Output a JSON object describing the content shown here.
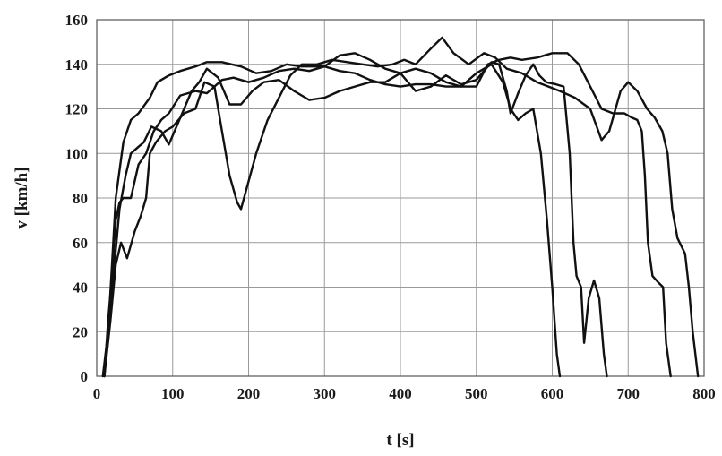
{
  "chart_data": {
    "type": "line",
    "xlabel": "t [s]",
    "ylabel": "v [km/h]",
    "xlim": [
      0,
      800
    ],
    "ylim": [
      0,
      160
    ],
    "xticks": [
      0,
      100,
      200,
      300,
      400,
      500,
      600,
      700,
      800
    ],
    "yticks": [
      0,
      20,
      40,
      60,
      80,
      100,
      120,
      140,
      160
    ],
    "grid": true,
    "legend": "none",
    "series": [
      {
        "points": [
          [
            8,
            0
          ],
          [
            15,
            20
          ],
          [
            20,
            50
          ],
          [
            25,
            80
          ],
          [
            35,
            105
          ],
          [
            45,
            115
          ],
          [
            55,
            118
          ],
          [
            70,
            125
          ],
          [
            80,
            132
          ],
          [
            95,
            135
          ],
          [
            110,
            137
          ],
          [
            130,
            139
          ],
          [
            145,
            141
          ],
          [
            165,
            141
          ],
          [
            190,
            139
          ],
          [
            210,
            136
          ],
          [
            230,
            137
          ],
          [
            250,
            140
          ],
          [
            270,
            139
          ],
          [
            300,
            139
          ],
          [
            320,
            137
          ],
          [
            340,
            136
          ],
          [
            360,
            133
          ],
          [
            380,
            131
          ],
          [
            400,
            130
          ],
          [
            420,
            131
          ],
          [
            440,
            131
          ],
          [
            460,
            130
          ],
          [
            480,
            130
          ],
          [
            500,
            136
          ],
          [
            520,
            140
          ],
          [
            535,
            132
          ],
          [
            545,
            120
          ],
          [
            555,
            115
          ],
          [
            565,
            118
          ],
          [
            575,
            120
          ],
          [
            585,
            100
          ],
          [
            593,
            70
          ],
          [
            600,
            40
          ],
          [
            606,
            10
          ],
          [
            610,
            0
          ]
        ]
      },
      {
        "points": [
          [
            10,
            0
          ],
          [
            15,
            25
          ],
          [
            20,
            45
          ],
          [
            25,
            70
          ],
          [
            30,
            78
          ],
          [
            35,
            80
          ],
          [
            45,
            80
          ],
          [
            55,
            95
          ],
          [
            65,
            100
          ],
          [
            75,
            110
          ],
          [
            85,
            115
          ],
          [
            95,
            118
          ],
          [
            110,
            126
          ],
          [
            130,
            128
          ],
          [
            145,
            127
          ],
          [
            165,
            133
          ],
          [
            180,
            134
          ],
          [
            200,
            132
          ],
          [
            220,
            134
          ],
          [
            240,
            137
          ],
          [
            260,
            138
          ],
          [
            280,
            137
          ],
          [
            300,
            139
          ],
          [
            320,
            144
          ],
          [
            340,
            145
          ],
          [
            360,
            142
          ],
          [
            380,
            138
          ],
          [
            400,
            136
          ],
          [
            420,
            128
          ],
          [
            440,
            130
          ],
          [
            460,
            135
          ],
          [
            480,
            131
          ],
          [
            500,
            133
          ],
          [
            520,
            141
          ],
          [
            530,
            140
          ],
          [
            540,
            128
          ],
          [
            545,
            118
          ],
          [
            555,
            127
          ],
          [
            565,
            135
          ],
          [
            575,
            140
          ],
          [
            583,
            135
          ],
          [
            592,
            132
          ],
          [
            605,
            131
          ],
          [
            615,
            130
          ],
          [
            623,
            100
          ],
          [
            628,
            60
          ],
          [
            632,
            45
          ],
          [
            638,
            40
          ],
          [
            642,
            15
          ],
          [
            648,
            35
          ],
          [
            655,
            43
          ],
          [
            662,
            35
          ],
          [
            668,
            10
          ],
          [
            672,
            0
          ]
        ]
      },
      {
        "points": [
          [
            10,
            0
          ],
          [
            18,
            25
          ],
          [
            25,
            50
          ],
          [
            32,
            60
          ],
          [
            40,
            53
          ],
          [
            50,
            65
          ],
          [
            58,
            72
          ],
          [
            65,
            80
          ],
          [
            70,
            100
          ],
          [
            78,
            105
          ],
          [
            90,
            110
          ],
          [
            100,
            112
          ],
          [
            115,
            118
          ],
          [
            130,
            120
          ],
          [
            142,
            132
          ],
          [
            155,
            130
          ],
          [
            165,
            110
          ],
          [
            175,
            90
          ],
          [
            185,
            78
          ],
          [
            190,
            75
          ],
          [
            198,
            85
          ],
          [
            210,
            100
          ],
          [
            225,
            115
          ],
          [
            240,
            125
          ],
          [
            255,
            135
          ],
          [
            270,
            140
          ],
          [
            290,
            140
          ],
          [
            310,
            142
          ],
          [
            330,
            141
          ],
          [
            350,
            140
          ],
          [
            370,
            139
          ],
          [
            390,
            140
          ],
          [
            405,
            142
          ],
          [
            420,
            140
          ],
          [
            440,
            147
          ],
          [
            455,
            152
          ],
          [
            470,
            145
          ],
          [
            490,
            140
          ],
          [
            510,
            145
          ],
          [
            525,
            143
          ],
          [
            540,
            138
          ],
          [
            560,
            136
          ],
          [
            580,
            132
          ],
          [
            595,
            130
          ],
          [
            610,
            128
          ],
          [
            630,
            125
          ],
          [
            650,
            120
          ],
          [
            665,
            106
          ],
          [
            675,
            110
          ],
          [
            690,
            128
          ],
          [
            700,
            132
          ],
          [
            712,
            128
          ],
          [
            725,
            120
          ],
          [
            735,
            116
          ],
          [
            745,
            110
          ],
          [
            752,
            100
          ],
          [
            758,
            75
          ],
          [
            765,
            62
          ],
          [
            775,
            55
          ],
          [
            780,
            40
          ],
          [
            785,
            20
          ],
          [
            792,
            0
          ]
        ]
      },
      {
        "points": [
          [
            10,
            0
          ],
          [
            15,
            20
          ],
          [
            22,
            45
          ],
          [
            30,
            75
          ],
          [
            38,
            90
          ],
          [
            45,
            100
          ],
          [
            55,
            103
          ],
          [
            62,
            105
          ],
          [
            72,
            112
          ],
          [
            85,
            110
          ],
          [
            95,
            104
          ],
          [
            105,
            112
          ],
          [
            115,
            120
          ],
          [
            125,
            128
          ],
          [
            135,
            132
          ],
          [
            145,
            138
          ],
          [
            160,
            134
          ],
          [
            175,
            122
          ],
          [
            190,
            122
          ],
          [
            205,
            128
          ],
          [
            220,
            132
          ],
          [
            240,
            133
          ],
          [
            260,
            128
          ],
          [
            280,
            124
          ],
          [
            300,
            125
          ],
          [
            320,
            128
          ],
          [
            340,
            130
          ],
          [
            360,
            132
          ],
          [
            380,
            132
          ],
          [
            400,
            136
          ],
          [
            420,
            138
          ],
          [
            440,
            136
          ],
          [
            460,
            132
          ],
          [
            480,
            130
          ],
          [
            500,
            130
          ],
          [
            515,
            140
          ],
          [
            530,
            142
          ],
          [
            545,
            143
          ],
          [
            560,
            142
          ],
          [
            580,
            143
          ],
          [
            600,
            145
          ],
          [
            620,
            145
          ],
          [
            635,
            140
          ],
          [
            650,
            130
          ],
          [
            665,
            120
          ],
          [
            680,
            118
          ],
          [
            695,
            118
          ],
          [
            705,
            116
          ],
          [
            712,
            115
          ],
          [
            718,
            110
          ],
          [
            722,
            90
          ],
          [
            726,
            60
          ],
          [
            732,
            45
          ],
          [
            740,
            42
          ],
          [
            746,
            40
          ],
          [
            750,
            15
          ],
          [
            756,
            0
          ]
        ]
      }
    ]
  }
}
